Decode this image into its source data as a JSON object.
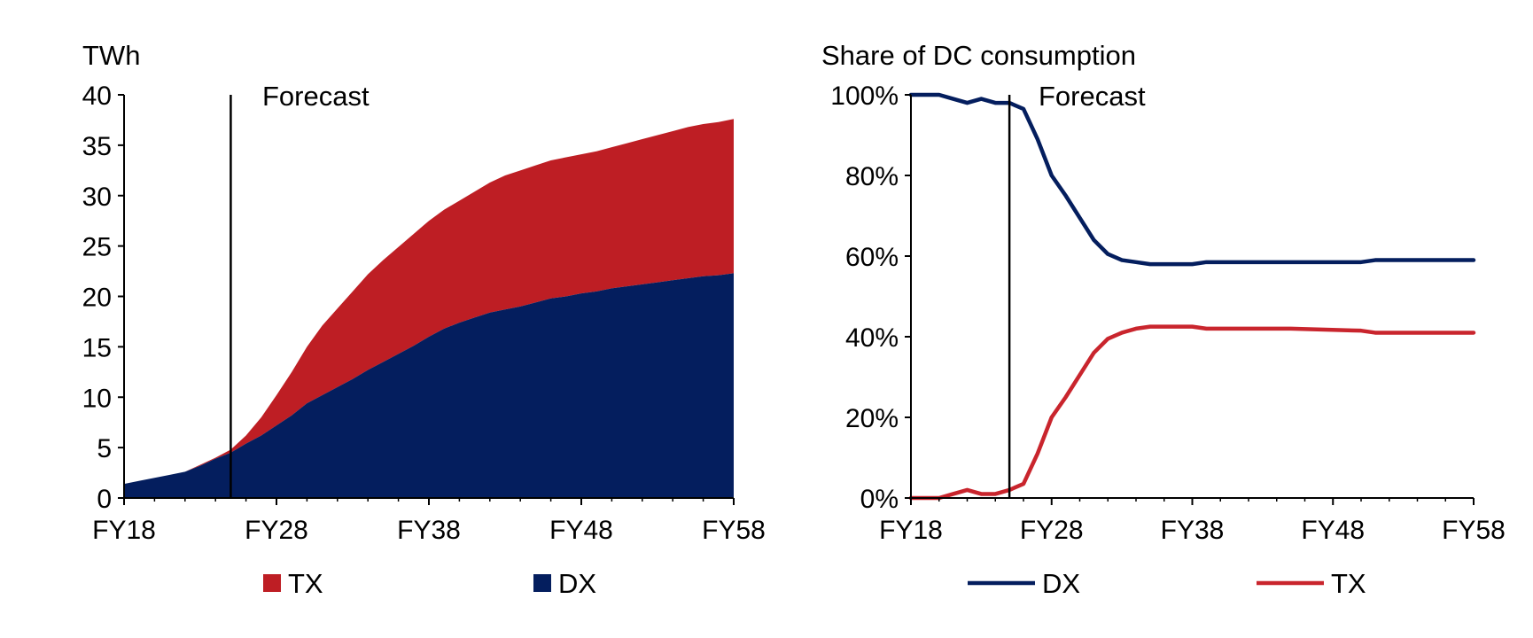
{
  "chart_data": [
    {
      "type": "area",
      "stacked": true,
      "ylabel": "TWh",
      "ylim": [
        0,
        40
      ],
      "yticks": [
        "0",
        "5",
        "10",
        "15",
        "20",
        "25",
        "30",
        "35",
        "40"
      ],
      "xticks": [
        "FY18",
        "FY28",
        "FY38",
        "FY48",
        "FY58"
      ],
      "xlim": [
        2018,
        2058
      ],
      "forecast_start": 2025,
      "forecast_label": "Forecast",
      "legend_position": "bottom",
      "series": [
        {
          "name": "DX",
          "color": "#041e5e",
          "x": [
            2018,
            2019,
            2020,
            2021,
            2022,
            2023,
            2024,
            2025,
            2026,
            2027,
            2028,
            2029,
            2030,
            2031,
            2032,
            2033,
            2034,
            2035,
            2036,
            2037,
            2038,
            2039,
            2040,
            2041,
            2042,
            2043,
            2044,
            2045,
            2046,
            2047,
            2048,
            2049,
            2050,
            2051,
            2052,
            2053,
            2054,
            2055,
            2056,
            2057,
            2058
          ],
          "values": [
            1.4,
            1.7,
            2.0,
            2.3,
            2.6,
            3.2,
            3.9,
            4.5,
            5.4,
            6.2,
            7.2,
            8.2,
            9.4,
            10.2,
            11.0,
            11.8,
            12.7,
            13.5,
            14.3,
            15.1,
            16.0,
            16.8,
            17.4,
            17.9,
            18.4,
            18.7,
            19.0,
            19.4,
            19.8,
            20.0,
            20.3,
            20.5,
            20.8,
            21.0,
            21.2,
            21.4,
            21.6,
            21.8,
            22.0,
            22.1,
            22.3
          ]
        },
        {
          "name": "TX",
          "color": "#be1e24",
          "x": [
            2018,
            2019,
            2020,
            2021,
            2022,
            2023,
            2024,
            2025,
            2026,
            2027,
            2028,
            2029,
            2030,
            2031,
            2032,
            2033,
            2034,
            2035,
            2036,
            2037,
            2038,
            2039,
            2040,
            2041,
            2042,
            2043,
            2044,
            2045,
            2046,
            2047,
            2048,
            2049,
            2050,
            2051,
            2052,
            2053,
            2054,
            2055,
            2056,
            2057,
            2058
          ],
          "values": [
            0,
            0,
            0,
            0,
            0,
            0.1,
            0.1,
            0.3,
            0.8,
            1.8,
            3.0,
            4.3,
            5.6,
            6.9,
            7.8,
            8.7,
            9.5,
            10.1,
            10.6,
            11.1,
            11.5,
            11.8,
            12.1,
            12.5,
            12.9,
            13.3,
            13.5,
            13.6,
            13.7,
            13.8,
            13.8,
            13.9,
            14.0,
            14.2,
            14.4,
            14.6,
            14.8,
            15.0,
            15.1,
            15.2,
            15.3
          ]
        }
      ]
    },
    {
      "type": "line",
      "ylabel": "Share of DC consumption",
      "ylim": [
        0,
        100
      ],
      "yticks": [
        "0%",
        "20%",
        "40%",
        "60%",
        "80%",
        "100%"
      ],
      "xticks": [
        "FY18",
        "FY28",
        "FY38",
        "FY48",
        "FY58"
      ],
      "xlim": [
        2018,
        2058
      ],
      "forecast_start": 2025,
      "forecast_label": "Forecast",
      "legend_position": "bottom",
      "series": [
        {
          "name": "DX",
          "color": "#041e5e",
          "x": [
            2018,
            2019,
            2020,
            2021,
            2022,
            2023,
            2024,
            2025,
            2026,
            2027,
            2028,
            2029,
            2030,
            2031,
            2032,
            2033,
            2034,
            2035,
            2036,
            2037,
            2038,
            2039,
            2040,
            2045,
            2050,
            2051,
            2055,
            2058
          ],
          "values": [
            100,
            100,
            100,
            99,
            98,
            99,
            98,
            98,
            96.5,
            89,
            80,
            75,
            69.5,
            64,
            60.5,
            59,
            58.5,
            58,
            58,
            58,
            58,
            58.5,
            58.5,
            58.5,
            58.5,
            59,
            59,
            59
          ]
        },
        {
          "name": "TX",
          "color": "#c9252d",
          "x": [
            2018,
            2019,
            2020,
            2021,
            2022,
            2023,
            2024,
            2025,
            2026,
            2027,
            2028,
            2029,
            2030,
            2031,
            2032,
            2033,
            2034,
            2035,
            2036,
            2037,
            2038,
            2039,
            2040,
            2045,
            2050,
            2051,
            2055,
            2058
          ],
          "values": [
            0,
            0,
            0,
            1,
            2,
            1,
            1,
            2,
            3.5,
            11,
            20,
            25,
            30.5,
            36,
            39.5,
            41,
            42,
            42.5,
            42.5,
            42.5,
            42.5,
            42,
            42,
            42,
            41.5,
            41,
            41,
            41
          ]
        }
      ]
    }
  ]
}
